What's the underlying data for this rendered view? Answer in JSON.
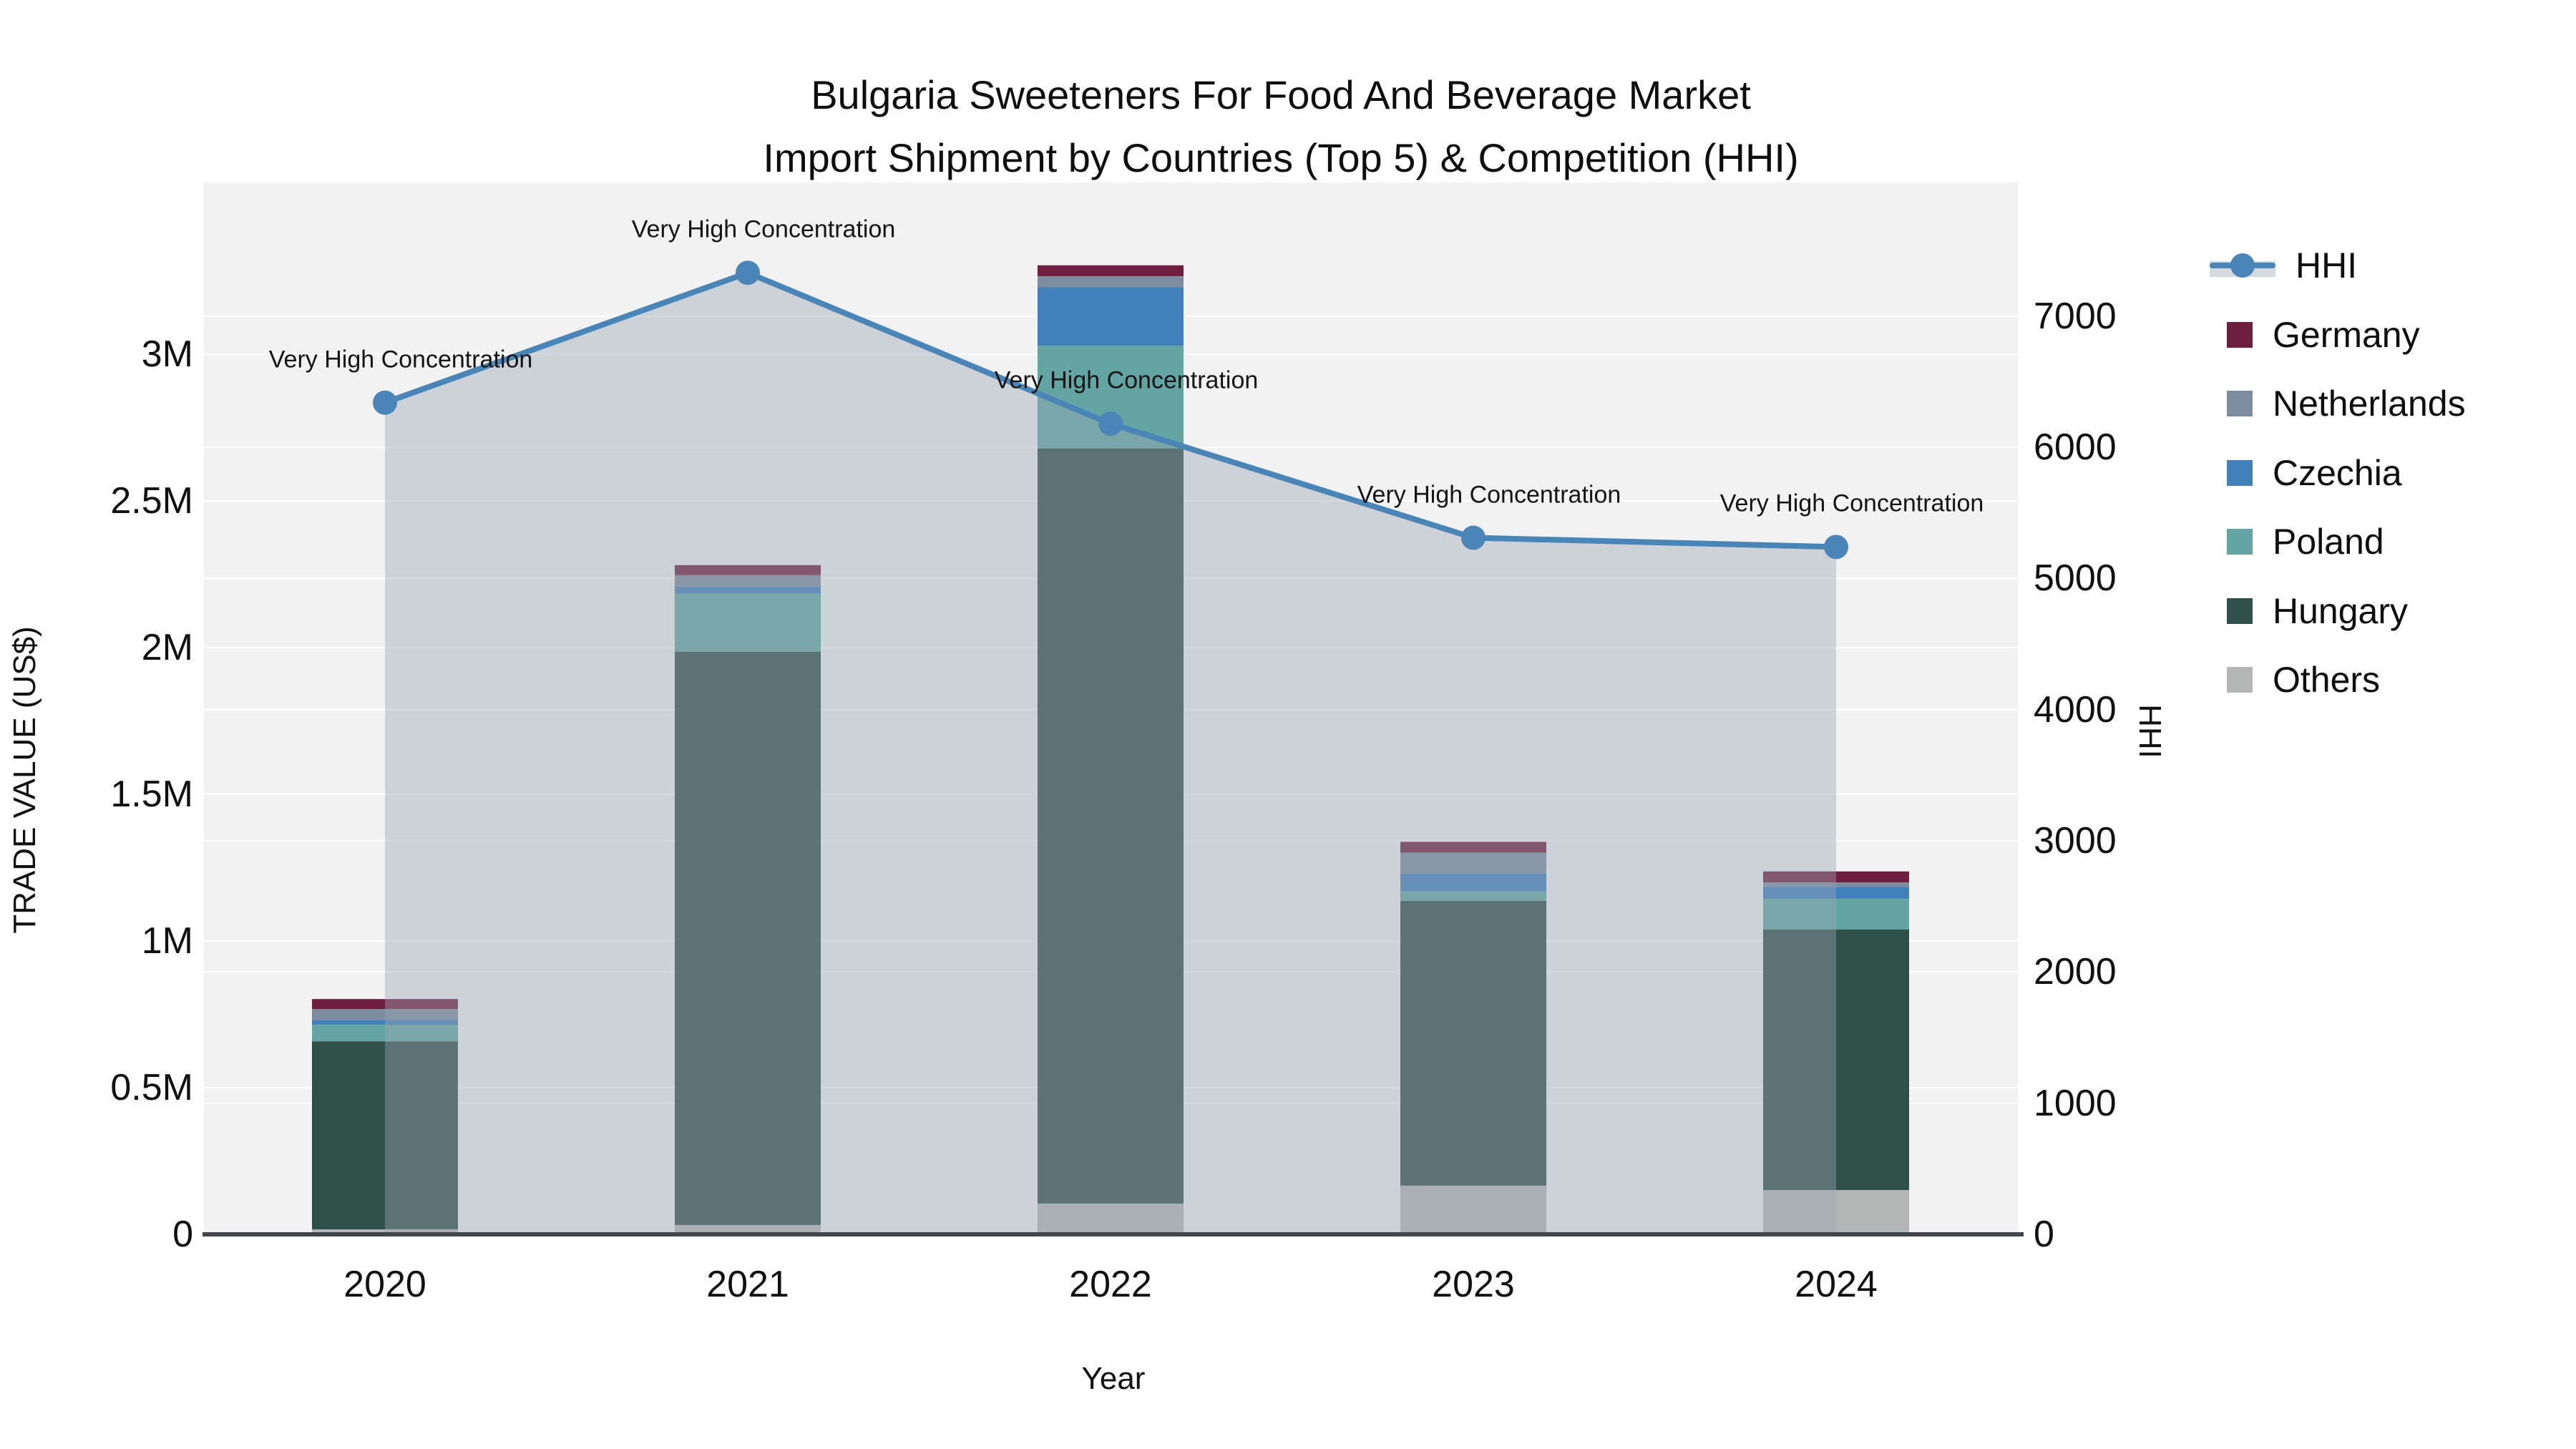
{
  "title": {
    "line1": "Bulgaria Sweeteners For Food And Beverage Market",
    "line2": "Import Shipment by Countries (Top 5) & Competition (HHI)"
  },
  "axes": {
    "left": {
      "title": "TRADE VALUE (US$)",
      "ticks": [
        {
          "label": "0",
          "value": 0
        },
        {
          "label": "0.5M",
          "value": 0.5
        },
        {
          "label": "1M",
          "value": 1
        },
        {
          "label": "1.5M",
          "value": 1.5
        },
        {
          "label": "2M",
          "value": 2
        },
        {
          "label": "2.5M",
          "value": 2.5
        },
        {
          "label": "3M",
          "value": 3
        }
      ]
    },
    "right": {
      "title": "HHI",
      "ticks": [
        {
          "label": "0",
          "value": 0
        },
        {
          "label": "1000",
          "value": 1000
        },
        {
          "label": "2000",
          "value": 2000
        },
        {
          "label": "3000",
          "value": 3000
        },
        {
          "label": "4000",
          "value": 4000
        },
        {
          "label": "5000",
          "value": 5000
        },
        {
          "label": "6000",
          "value": 6000
        },
        {
          "label": "7000",
          "value": 7000
        }
      ]
    },
    "x": {
      "title": "Year",
      "ticks": [
        "2020",
        "2021",
        "2022",
        "2023",
        "2024"
      ]
    }
  },
  "legend": {
    "items": [
      {
        "label": "HHI",
        "type": "line",
        "color": "#4a85b8"
      },
      {
        "label": "Germany",
        "type": "swatch",
        "color": "#6e1e3e"
      },
      {
        "label": "Netherlands",
        "type": "swatch",
        "color": "#7d8c9e"
      },
      {
        "label": "Czechia",
        "type": "swatch",
        "color": "#4180bb"
      },
      {
        "label": "Poland",
        "type": "swatch",
        "color": "#63a5a3"
      },
      {
        "label": "Hungary",
        "type": "swatch",
        "color": "#2f4f49"
      },
      {
        "label": "Others",
        "type": "swatch",
        "color": "#b3b5b5"
      }
    ]
  },
  "chart_data": {
    "type": "bar",
    "stacked": true,
    "categories": [
      "2020",
      "2021",
      "2022",
      "2023",
      "2024"
    ],
    "bar_series_bottom_to_top": [
      {
        "name": "Others",
        "color": "#b3b5b5",
        "values_musd": [
          0.017,
          0.032,
          0.105,
          0.166,
          0.151
        ]
      },
      {
        "name": "Hungary",
        "color": "#2f4f49",
        "values_musd": [
          0.641,
          1.954,
          2.574,
          0.971,
          0.888
        ]
      },
      {
        "name": "Poland",
        "color": "#63a5a3",
        "values_musd": [
          0.056,
          0.198,
          0.35,
          0.032,
          0.105
        ]
      },
      {
        "name": "Czechia",
        "color": "#4180bb",
        "values_musd": [
          0.017,
          0.024,
          0.199,
          0.061,
          0.041
        ]
      },
      {
        "name": "Netherlands",
        "color": "#7d8c9e",
        "values_musd": [
          0.037,
          0.039,
          0.038,
          0.071,
          0.015
        ]
      },
      {
        "name": "Germany",
        "color": "#6e1e3e",
        "values_musd": [
          0.034,
          0.034,
          0.037,
          0.037,
          0.037
        ]
      }
    ],
    "bar_totals_musd": [
      0.802,
      2.281,
      3.303,
      1.338,
      1.237
    ],
    "line_series": {
      "name": "HHI",
      "color": "#4a85b8",
      "fill_color": "rgba(155,166,182,0.42)",
      "values": [
        6340,
        7330,
        6180,
        5310,
        5240
      ],
      "point_annotations": [
        "Very High Concentration",
        "Very High Concentration",
        "Very High Concentration",
        "Very High Concentration",
        "Very High Concentration"
      ]
    },
    "xlabel": "Year",
    "ylabel_left": "TRADE VALUE (US$)",
    "ylabel_right": "HHI",
    "ylim_left_musd": [
      0,
      3.58
    ],
    "ylim_right": [
      0,
      8020
    ],
    "grid": true,
    "legend_position": "right"
  },
  "colors": {
    "plot_background": "#f2f2f3",
    "paper_background": "#ffffff",
    "gridline": "#ffffff",
    "axis_line": "#40464b",
    "text": "#111111"
  }
}
